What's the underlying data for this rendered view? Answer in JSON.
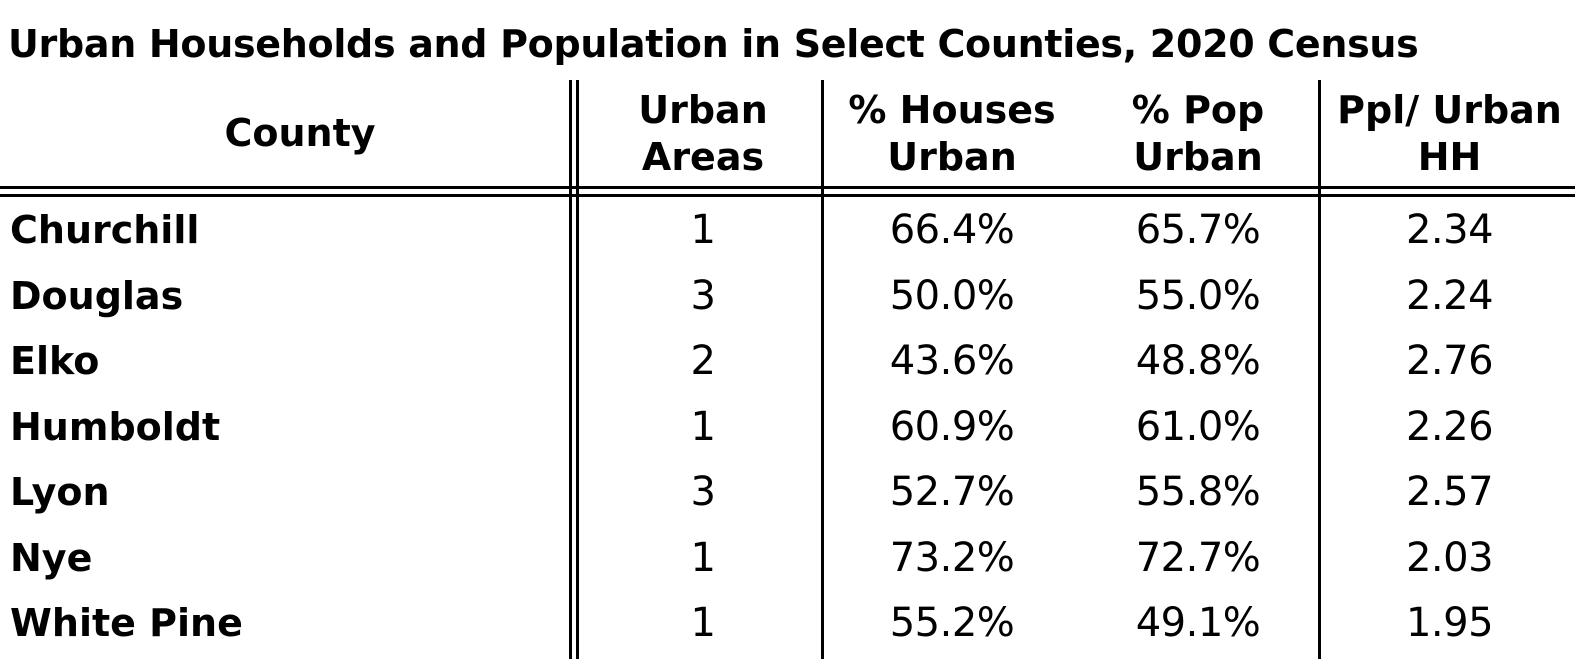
{
  "chart_data": {
    "type": "table",
    "title": "Urban Households and Population in Select Counties, 2020 Census",
    "columns": [
      {
        "line1": "",
        "line2": "County"
      },
      {
        "line1": "Urban",
        "line2": "Areas"
      },
      {
        "line1": "% Houses",
        "line2": "Urban"
      },
      {
        "line1": "% Pop",
        "line2": "Urban"
      },
      {
        "line1": "Ppl/ Urban",
        "line2": "HH"
      }
    ],
    "rows": [
      {
        "county": "Churchill",
        "urban_areas": "1",
        "pct_houses_urban": "66.4%",
        "pct_pop_urban": "65.7%",
        "ppl_per_urban_hh": "2.34"
      },
      {
        "county": "Douglas",
        "urban_areas": "3",
        "pct_houses_urban": "50.0%",
        "pct_pop_urban": "55.0%",
        "ppl_per_urban_hh": "2.24"
      },
      {
        "county": "Elko",
        "urban_areas": "2",
        "pct_houses_urban": "43.6%",
        "pct_pop_urban": "48.8%",
        "ppl_per_urban_hh": "2.76"
      },
      {
        "county": "Humboldt",
        "urban_areas": "1",
        "pct_houses_urban": "60.9%",
        "pct_pop_urban": "61.0%",
        "ppl_per_urban_hh": "2.26"
      },
      {
        "county": "Lyon",
        "urban_areas": "3",
        "pct_houses_urban": "52.7%",
        "pct_pop_urban": "55.8%",
        "ppl_per_urban_hh": "2.57"
      },
      {
        "county": "Nye",
        "urban_areas": "1",
        "pct_houses_urban": "73.2%",
        "pct_pop_urban": "72.7%",
        "ppl_per_urban_hh": "2.03"
      },
      {
        "county": "White Pine",
        "urban_areas": "1",
        "pct_houses_urban": "55.2%",
        "pct_pop_urban": "49.1%",
        "ppl_per_urban_hh": "1.95"
      }
    ]
  }
}
